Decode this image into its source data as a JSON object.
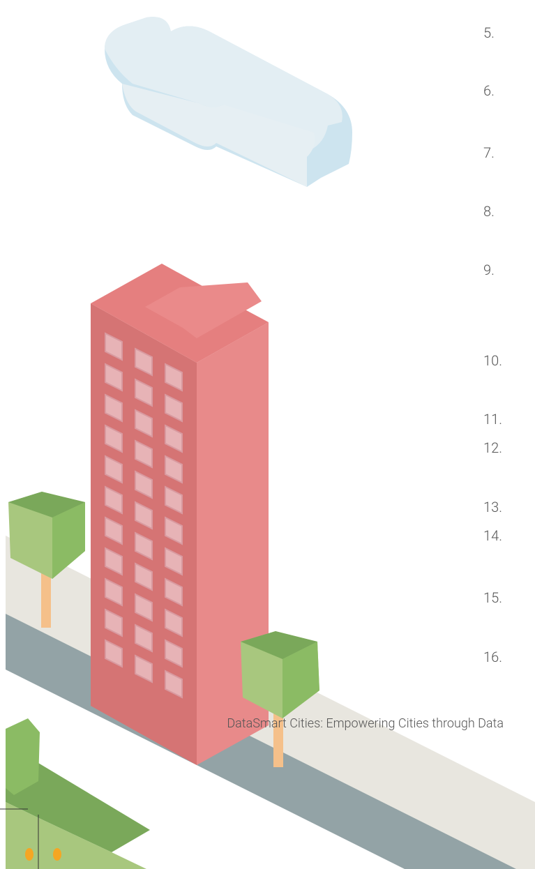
{
  "list": {
    "items": [
      "5.",
      "6.",
      "7.",
      "8.",
      "9.",
      "10.",
      "11.",
      "12.",
      "13.",
      "14.",
      "15.",
      "16."
    ]
  },
  "caption": "DataSmart Cities: Empowering Cities through Data"
}
